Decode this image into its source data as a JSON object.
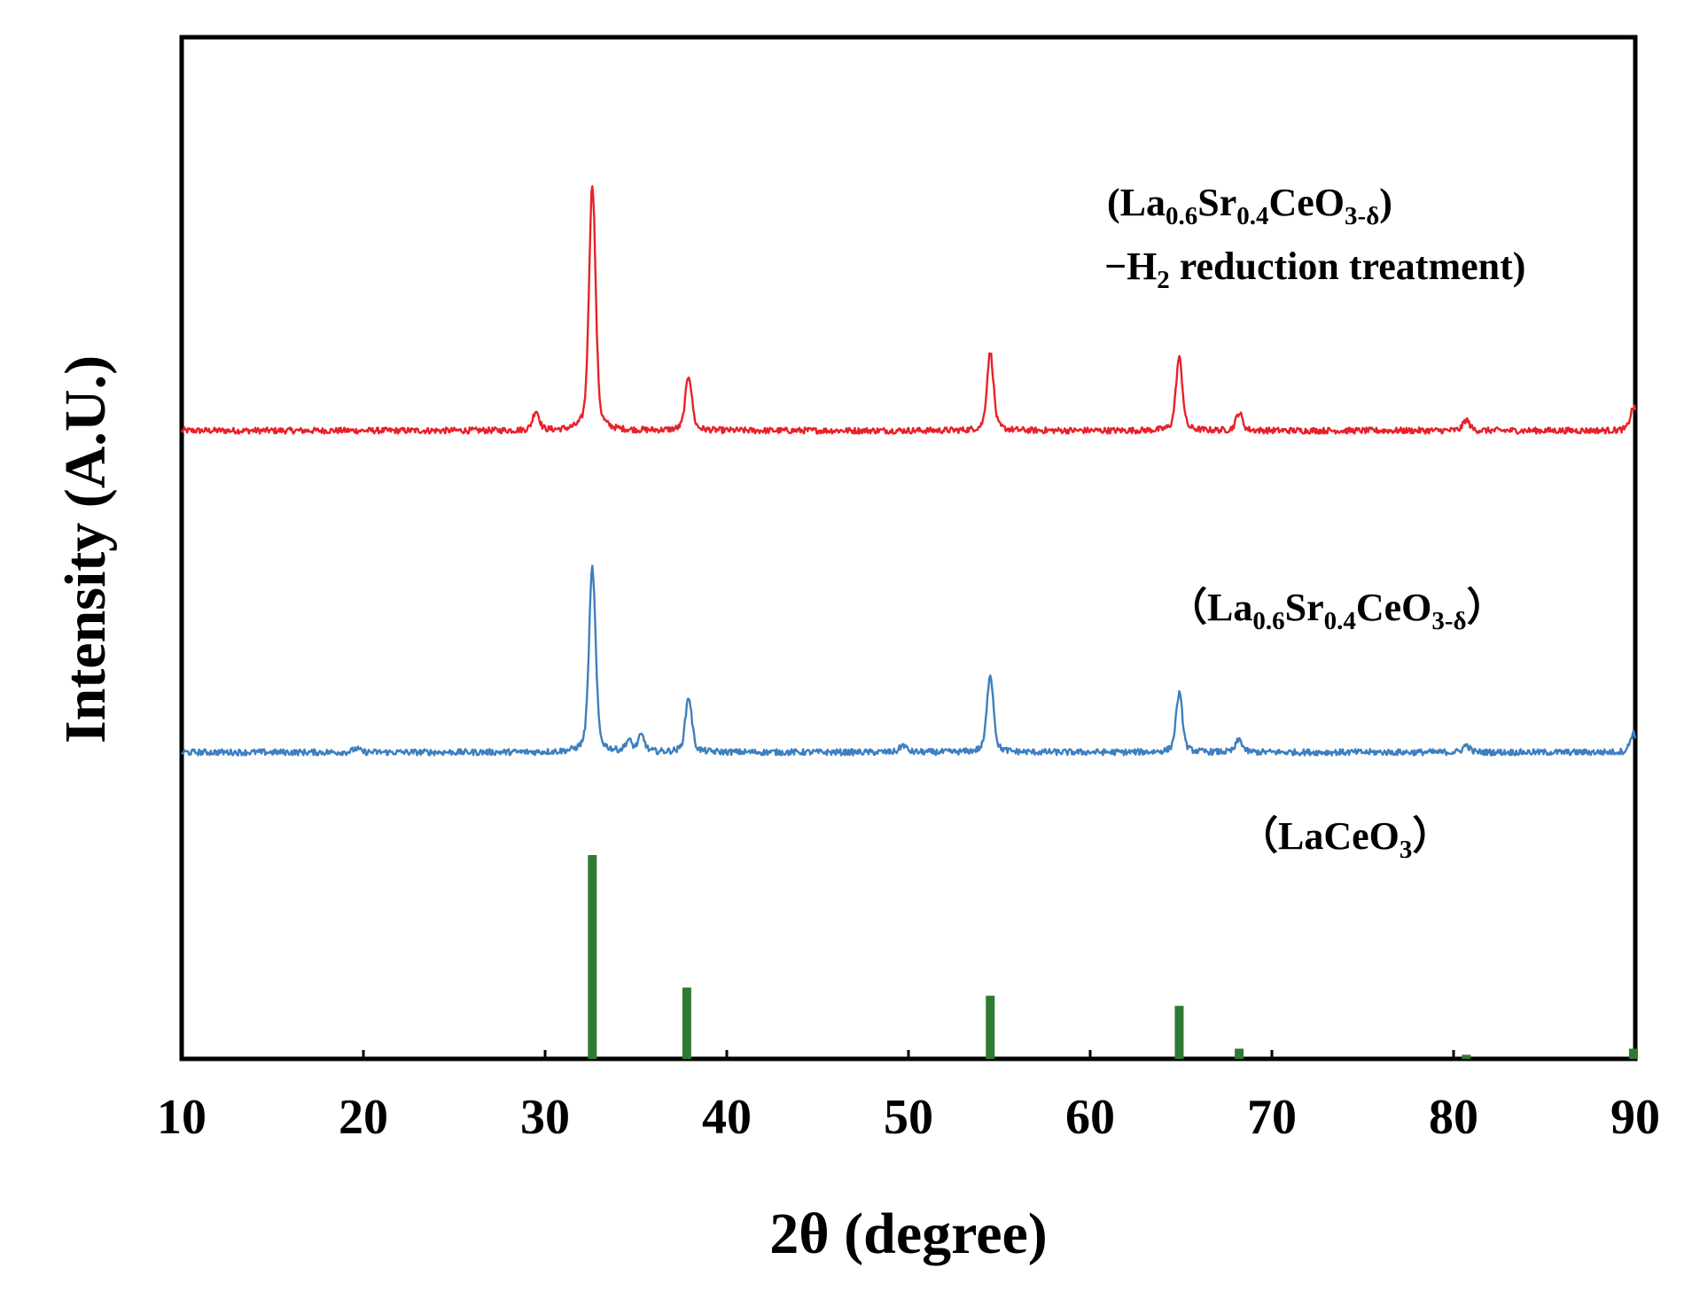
{
  "chart_data": {
    "type": "line",
    "xlabel": "2θ (degree)",
    "ylabel": "Intensity (A.U.)",
    "xlim": [
      10,
      90
    ],
    "x_ticks": [
      "10",
      "20",
      "30",
      "40",
      "50",
      "60",
      "70",
      "80",
      "90"
    ],
    "y_ticks_shown": false,
    "grid": false,
    "colors": {
      "reduced": "#e8212a",
      "pristine": "#3d7fbf",
      "reference": "#2e7a32",
      "axes": "#000000"
    },
    "series": [
      {
        "annotation": {
          "line1": {
            "open": "(La",
            "s1": "0.6",
            "t1": "Sr",
            "s2": "0.4",
            "t2": "CeO",
            "s3": "3-δ",
            "close": ")"
          },
          "line2": {
            "lead": "−H",
            "sub": "2",
            "rest": " reduction treatment)"
          }
        },
        "peaks": [
          {
            "x": 29.5,
            "h": 22
          },
          {
            "x": 32.6,
            "h": 278
          },
          {
            "x": 37.9,
            "h": 62
          },
          {
            "x": 54.5,
            "h": 88
          },
          {
            "x": 64.9,
            "h": 82
          },
          {
            "x": 68.2,
            "h": 20
          },
          {
            "x": 80.7,
            "h": 12
          },
          {
            "x": 89.9,
            "h": 26
          }
        ]
      },
      {
        "annotation": {
          "line1": {
            "open": "（La",
            "s1": "0.6",
            "t1": "Sr",
            "s2": "0.4",
            "t2": "CeO",
            "s3": "3-δ",
            "close": "）"
          }
        },
        "peaks": [
          {
            "x": 19.6,
            "h": 4
          },
          {
            "x": 32.6,
            "h": 208
          },
          {
            "x": 34.6,
            "h": 12
          },
          {
            "x": 35.3,
            "h": 18
          },
          {
            "x": 37.9,
            "h": 62
          },
          {
            "x": 49.7,
            "h": 8
          },
          {
            "x": 54.5,
            "h": 88
          },
          {
            "x": 64.9,
            "h": 66
          },
          {
            "x": 68.2,
            "h": 14
          },
          {
            "x": 80.7,
            "h": 8
          },
          {
            "x": 89.9,
            "h": 22
          }
        ]
      },
      {
        "annotation": {
          "line1": {
            "open": "（LaCeO",
            "s1": "3",
            "close": "）"
          }
        },
        "sticks": [
          {
            "x": 32.6,
            "h": 100
          },
          {
            "x": 37.8,
            "h": 35
          },
          {
            "x": 54.5,
            "h": 31
          },
          {
            "x": 64.9,
            "h": 26
          },
          {
            "x": 68.2,
            "h": 5
          },
          {
            "x": 80.7,
            "h": 2
          },
          {
            "x": 89.9,
            "h": 5
          }
        ]
      }
    ]
  }
}
